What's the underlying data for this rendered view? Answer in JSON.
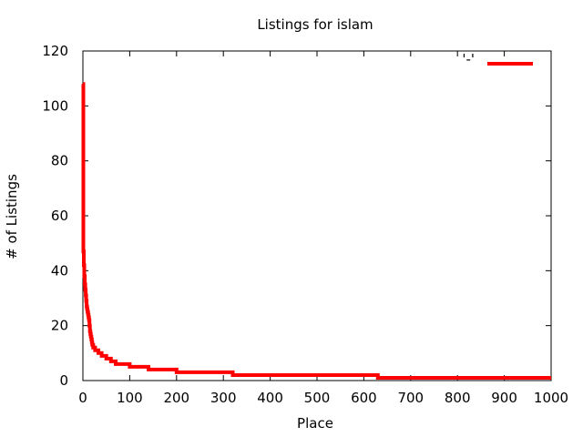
{
  "chart_data": {
    "type": "line",
    "title": "Listings for islam",
    "xlabel": "Place",
    "ylabel": "# of Listings",
    "xlim": [
      0,
      1000
    ],
    "ylim": [
      0,
      120
    ],
    "xticks": [
      0,
      100,
      200,
      300,
      400,
      500,
      600,
      700,
      800,
      900,
      1000
    ],
    "yticks": [
      0,
      20,
      40,
      60,
      80,
      100,
      120
    ],
    "legend_position": "top-right",
    "grid": false,
    "series": [
      {
        "name": "'-'",
        "color": "#ff0000",
        "x": [
          0,
          1,
          2,
          3,
          4,
          5,
          6,
          7,
          8,
          9,
          10,
          11,
          12,
          13,
          14,
          15,
          16,
          17,
          18,
          19,
          20,
          22,
          24,
          26,
          28,
          30,
          33,
          36,
          40,
          45,
          50,
          55,
          60,
          70,
          80,
          100,
          110,
          140,
          200,
          320,
          630,
          1000
        ],
        "y": [
          108,
          47,
          42,
          38,
          35,
          33,
          31,
          29,
          27,
          26,
          25,
          24,
          23,
          22,
          20,
          18,
          17,
          16,
          15,
          14,
          13,
          12,
          12,
          11,
          11,
          11,
          10,
          10,
          9,
          9,
          8,
          8,
          7,
          6,
          6,
          5,
          5,
          4,
          3,
          2,
          1,
          1
        ]
      }
    ]
  }
}
